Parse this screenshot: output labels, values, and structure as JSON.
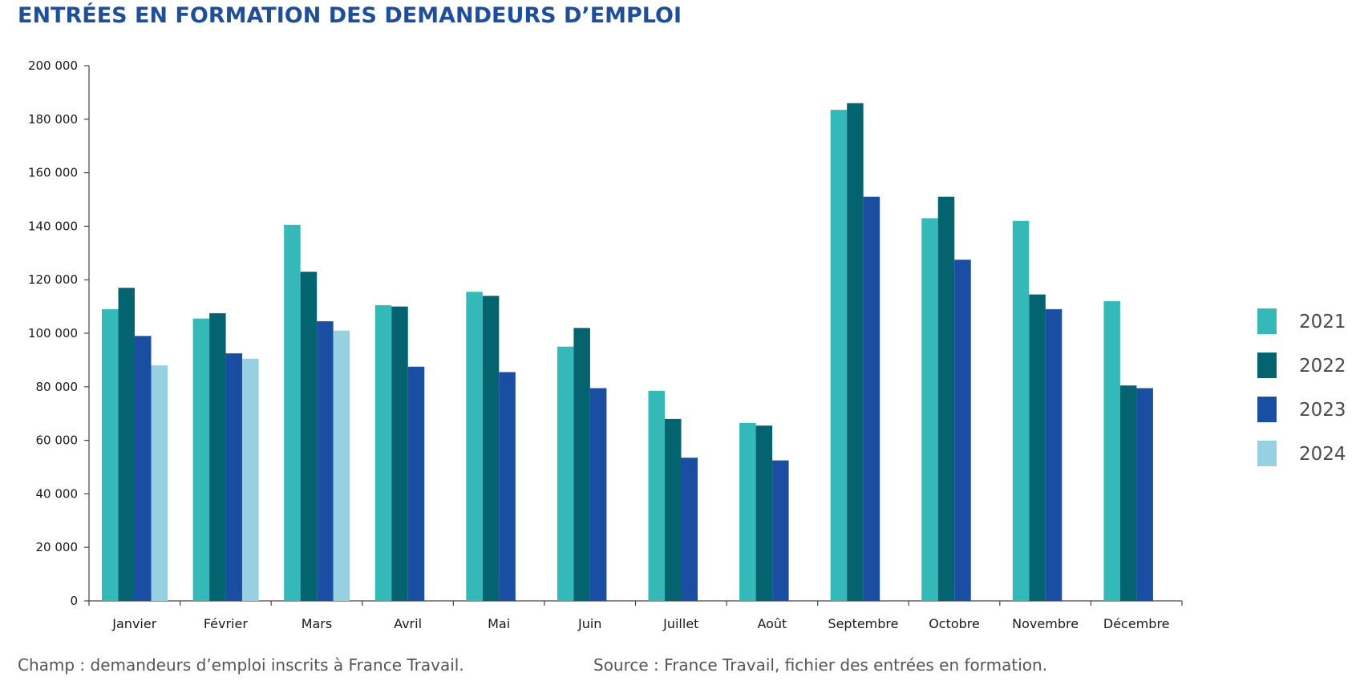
{
  "chart_data": {
    "type": "bar",
    "title": "ENTRÉES EN FORMATION DES DEMANDEURS D’EMPLOI",
    "categories": [
      "Janvier",
      "Février",
      "Mars",
      "Avril",
      "Mai",
      "Juin",
      "Juillet",
      "Août",
      "Septembre",
      "Octobre",
      "Novembre",
      "Décembre"
    ],
    "series": [
      {
        "name": "2021",
        "color": "#35b8b8",
        "values": [
          109000,
          105500,
          140500,
          110500,
          115500,
          95000,
          78500,
          66500,
          183500,
          143000,
          142000,
          112000
        ]
      },
      {
        "name": "2022",
        "color": "#036470",
        "values": [
          117000,
          107500,
          123000,
          110000,
          114000,
          102000,
          68000,
          65500,
          186000,
          151000,
          114500,
          80500
        ]
      },
      {
        "name": "2023",
        "color": "#1a4ea3",
        "values": [
          99000,
          92500,
          104500,
          87500,
          85500,
          79500,
          53500,
          52500,
          151000,
          127500,
          109000,
          79500
        ]
      },
      {
        "name": "2024",
        "color": "#97d1e1",
        "values": [
          88000,
          90500,
          101000,
          null,
          null,
          null,
          null,
          null,
          null,
          null,
          null,
          null
        ]
      }
    ],
    "ylim": [
      0,
      200000
    ],
    "yticks": [
      0,
      20000,
      40000,
      60000,
      80000,
      100000,
      120000,
      140000,
      160000,
      180000,
      200000
    ],
    "ytick_labels": [
      "0",
      "20 000",
      "40 000",
      "60 000",
      "80 000",
      "100 000",
      "120 000",
      "140 000",
      "160 000",
      "180 000",
      "200 000"
    ],
    "xlabel": "",
    "ylabel": "",
    "grid": false,
    "legend_position": "right"
  },
  "footer": {
    "champ": "Champ : demandeurs d’emploi inscrits à France Travail.",
    "source": "Source : France Travail, fichier des entrées en formation."
  }
}
